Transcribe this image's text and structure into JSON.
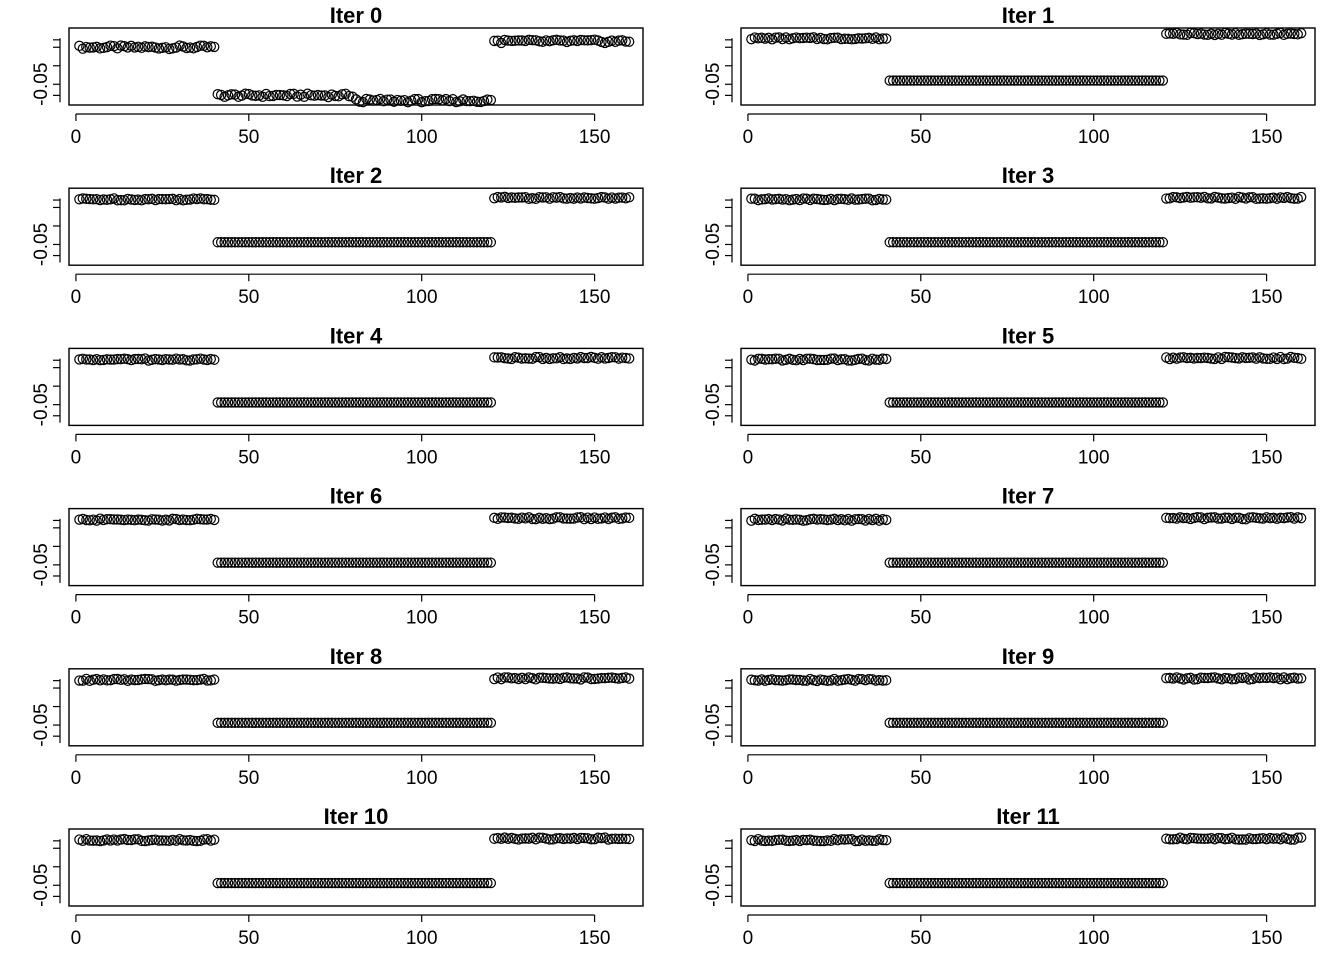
{
  "chart_data": {
    "type": "scatter",
    "layout": {
      "rows": 6,
      "cols": 2
    },
    "x_ticks": [
      0,
      50,
      100,
      150
    ],
    "y_ticks": [
      0.0,
      -0.05
    ],
    "y_tick_labels": [
      "",
      "-0.05"
    ],
    "xlim": [
      -2,
      164
    ],
    "ylim": [
      -0.078,
      0.026
    ],
    "grid": false,
    "point_style": "open-circle",
    "panels": [
      {
        "title": "Iter 0",
        "x_range": [
          1,
          160
        ],
        "groups": [
          {
            "from": 1,
            "to": 40,
            "y": 0.0
          },
          {
            "from": 41,
            "to": 80,
            "y": -0.065
          },
          {
            "from": 81,
            "to": 120,
            "y": -0.072
          },
          {
            "from": 121,
            "to": 160,
            "y": 0.008
          }
        ]
      },
      {
        "title": "Iter 1",
        "x_range": [
          1,
          160
        ],
        "groups": [
          {
            "from": 1,
            "to": 40,
            "y": 0.012
          },
          {
            "from": 41,
            "to": 120,
            "y": -0.045
          },
          {
            "from": 121,
            "to": 160,
            "y": 0.018
          }
        ]
      },
      {
        "title": "Iter 2",
        "x_range": [
          1,
          160
        ],
        "groups": [
          {
            "from": 1,
            "to": 40,
            "y": 0.011
          },
          {
            "from": 41,
            "to": 120,
            "y": -0.047
          },
          {
            "from": 121,
            "to": 160,
            "y": 0.013
          }
        ]
      },
      {
        "title": "Iter 3",
        "x_range": [
          1,
          160
        ],
        "groups": [
          {
            "from": 1,
            "to": 40,
            "y": 0.011
          },
          {
            "from": 41,
            "to": 120,
            "y": -0.047
          },
          {
            "from": 121,
            "to": 160,
            "y": 0.013
          }
        ]
      },
      {
        "title": "Iter 4",
        "x_range": [
          1,
          160
        ],
        "groups": [
          {
            "from": 1,
            "to": 40,
            "y": 0.011
          },
          {
            "from": 41,
            "to": 120,
            "y": -0.047
          },
          {
            "from": 121,
            "to": 160,
            "y": 0.013
          }
        ]
      },
      {
        "title": "Iter 5",
        "x_range": [
          1,
          160
        ],
        "groups": [
          {
            "from": 1,
            "to": 40,
            "y": 0.011
          },
          {
            "from": 41,
            "to": 120,
            "y": -0.047
          },
          {
            "from": 121,
            "to": 160,
            "y": 0.013
          }
        ]
      },
      {
        "title": "Iter 6",
        "x_range": [
          1,
          160
        ],
        "groups": [
          {
            "from": 1,
            "to": 40,
            "y": 0.011
          },
          {
            "from": 41,
            "to": 120,
            "y": -0.047
          },
          {
            "from": 121,
            "to": 160,
            "y": 0.013
          }
        ]
      },
      {
        "title": "Iter 7",
        "x_range": [
          1,
          160
        ],
        "groups": [
          {
            "from": 1,
            "to": 40,
            "y": 0.011
          },
          {
            "from": 41,
            "to": 120,
            "y": -0.047
          },
          {
            "from": 121,
            "to": 160,
            "y": 0.013
          }
        ]
      },
      {
        "title": "Iter 8",
        "x_range": [
          1,
          160
        ],
        "groups": [
          {
            "from": 1,
            "to": 40,
            "y": 0.011
          },
          {
            "from": 41,
            "to": 120,
            "y": -0.047
          },
          {
            "from": 121,
            "to": 160,
            "y": 0.013
          }
        ]
      },
      {
        "title": "Iter 9",
        "x_range": [
          1,
          160
        ],
        "groups": [
          {
            "from": 1,
            "to": 40,
            "y": 0.011
          },
          {
            "from": 41,
            "to": 120,
            "y": -0.047
          },
          {
            "from": 121,
            "to": 160,
            "y": 0.013
          }
        ]
      },
      {
        "title": "Iter 10",
        "x_range": [
          1,
          160
        ],
        "groups": [
          {
            "from": 1,
            "to": 40,
            "y": 0.011
          },
          {
            "from": 41,
            "to": 120,
            "y": -0.047
          },
          {
            "from": 121,
            "to": 160,
            "y": 0.013
          }
        ]
      },
      {
        "title": "Iter 11",
        "x_range": [
          1,
          160
        ],
        "groups": [
          {
            "from": 1,
            "to": 40,
            "y": 0.011
          },
          {
            "from": 41,
            "to": 120,
            "y": -0.047
          },
          {
            "from": 121,
            "to": 160,
            "y": 0.013
          }
        ]
      }
    ]
  }
}
